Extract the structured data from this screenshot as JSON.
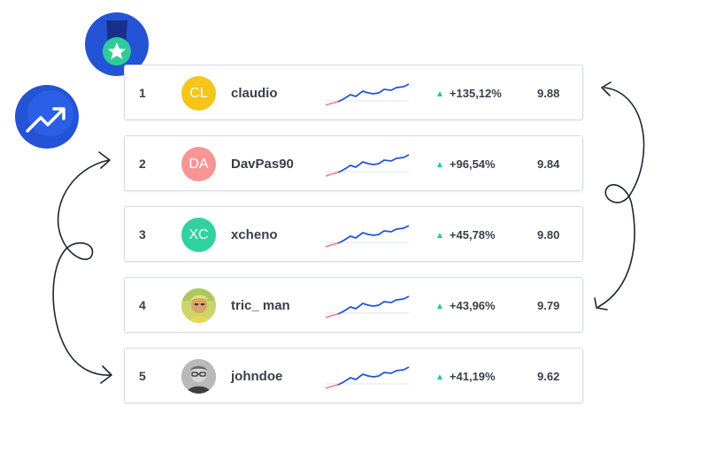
{
  "colors": {
    "accent_blue": "#2453d6",
    "spark_red": "#f28b8b",
    "up_green": "#1fc98a",
    "medal_ribbon": "#1a2f8a",
    "medal_circle": "#2ecc9a"
  },
  "badges": {
    "medal": {
      "icon": "medal-star-icon"
    },
    "trend": {
      "icon": "trending-up-icon"
    }
  },
  "leaderboard": [
    {
      "rank": "1",
      "initials": "CL",
      "avatar_color": "#f5c518",
      "avatar_type": "initials",
      "username": "claudio",
      "change": "+135,12%",
      "score": "9.88"
    },
    {
      "rank": "2",
      "initials": "DA",
      "avatar_color": "#f79595",
      "avatar_type": "initials",
      "username": "DavPas90",
      "change": "+96,54%",
      "score": "9.84"
    },
    {
      "rank": "3",
      "initials": "XC",
      "avatar_color": "#2ed3a0",
      "avatar_type": "initials",
      "username": "xcheno",
      "change": "+45,78%",
      "score": "9.80"
    },
    {
      "rank": "4",
      "initials": "",
      "avatar_color": "#c9c46a",
      "avatar_type": "photo",
      "username": "tric_ man",
      "change": "+43,96%",
      "score": "9.79"
    },
    {
      "rank": "5",
      "initials": "",
      "avatar_color": "#9a9a9a",
      "avatar_type": "photo",
      "username": "johndoe",
      "change": "+41,19%",
      "score": "9.62"
    }
  ]
}
